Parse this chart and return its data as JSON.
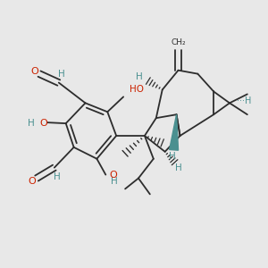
{
  "bg_color": "#e8e8e8",
  "bond_color": "#2d2d2d",
  "o_color": "#cc2200",
  "h_color": "#4a9090",
  "lw": 1.3,
  "fig_size": 3.0,
  "dpi": 100,
  "xlim": [
    0,
    300
  ],
  "ylim": [
    0,
    300
  ]
}
